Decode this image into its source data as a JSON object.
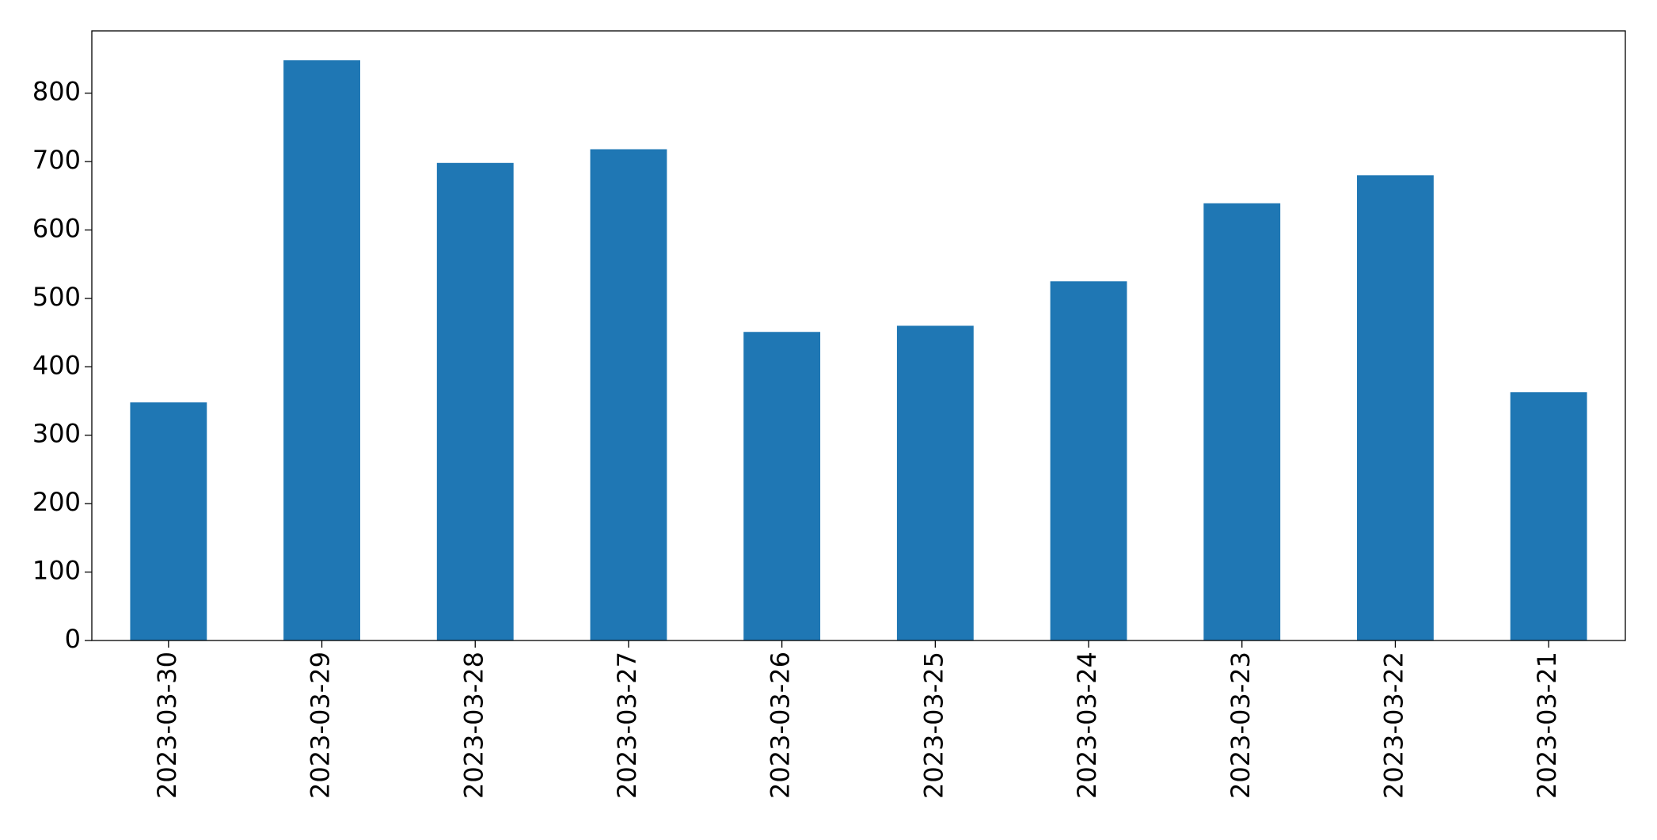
{
  "chart_data": {
    "type": "bar",
    "categories": [
      "2023-03-30",
      "2023-03-29",
      "2023-03-28",
      "2023-03-27",
      "2023-03-26",
      "2023-03-25",
      "2023-03-24",
      "2023-03-23",
      "2023-03-22",
      "2023-03-21"
    ],
    "values": [
      348,
      848,
      698,
      718,
      451,
      460,
      525,
      639,
      680,
      363
    ],
    "color": "#1f77b4",
    "ylim": [
      0,
      891
    ],
    "yticks": [
      0,
      100,
      200,
      300,
      400,
      500,
      600,
      700,
      800
    ],
    "grid": false
  }
}
